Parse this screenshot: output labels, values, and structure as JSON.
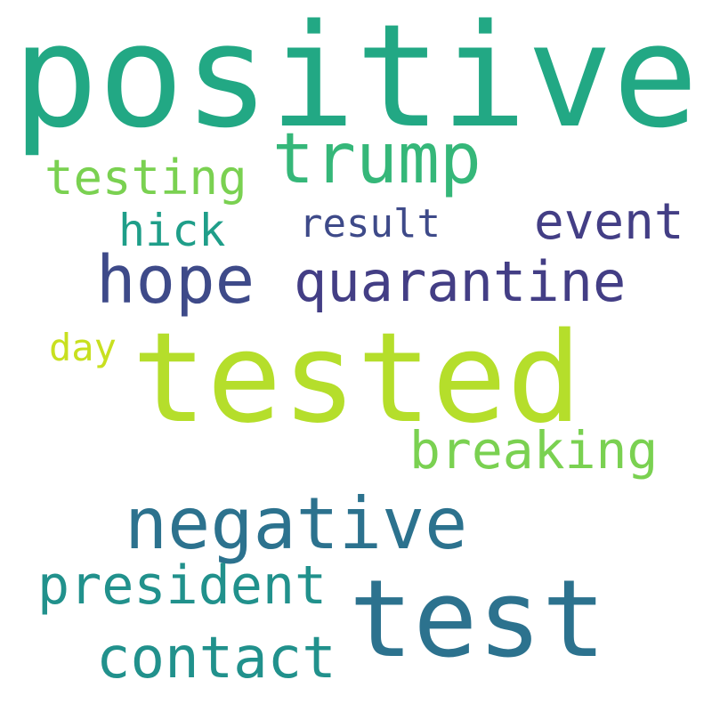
{
  "words": [
    {
      "key": "positive",
      "text": "positive",
      "color": "#22a884"
    },
    {
      "key": "tested",
      "text": "tested",
      "color": "#b5de2b"
    },
    {
      "key": "test",
      "text": "test",
      "color": "#2c728e"
    },
    {
      "key": "negative",
      "text": "negative",
      "color": "#2c728e"
    },
    {
      "key": "trump",
      "text": "trump",
      "color": "#35b779"
    },
    {
      "key": "hope",
      "text": "hope",
      "color": "#3e4a89"
    },
    {
      "key": "quarantine",
      "text": "quarantine",
      "color": "#433e85"
    },
    {
      "key": "contact",
      "text": "contact",
      "color": "#21918c"
    },
    {
      "key": "president",
      "text": "president",
      "color": "#21918c"
    },
    {
      "key": "breaking",
      "text": "breaking",
      "color": "#7ad151"
    },
    {
      "key": "event",
      "text": "event",
      "color": "#433e85"
    },
    {
      "key": "testing",
      "text": "testing",
      "color": "#7ad151"
    },
    {
      "key": "hick",
      "text": "hick",
      "color": "#1f9e89"
    },
    {
      "key": "result",
      "text": "result",
      "color": "#3e4a89"
    },
    {
      "key": "day",
      "text": "day",
      "color": "#c8e020"
    }
  ]
}
